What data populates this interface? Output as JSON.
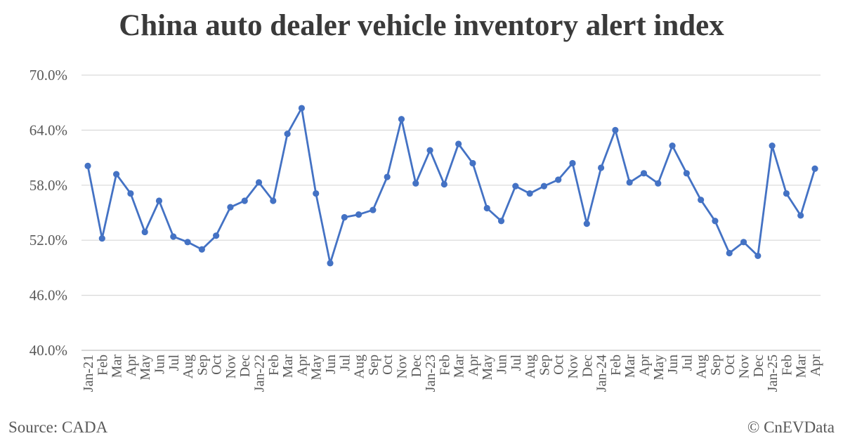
{
  "chart_data": {
    "type": "line",
    "title": "China auto dealer vehicle inventory alert index",
    "xlabel": "",
    "ylabel": "",
    "ylim": [
      40,
      70
    ],
    "y_ticks": [
      "40.0%",
      "46.0%",
      "52.0%",
      "58.0%",
      "64.0%",
      "70.0%"
    ],
    "grid": true,
    "legend": "none",
    "categories": [
      "Jan-21",
      "Feb",
      "Mar",
      "Apr",
      "May",
      "Jun",
      "Jul",
      "Aug",
      "Sep",
      "Oct",
      "Nov",
      "Dec",
      "Jan-22",
      "Feb",
      "Mar",
      "Apr",
      "May",
      "Jun",
      "Jul",
      "Aug",
      "Sep",
      "Oct",
      "Nov",
      "Dec",
      "Jan-23",
      "Feb",
      "Mar",
      "Apr",
      "May",
      "Jun",
      "Jul",
      "Aug",
      "Sep",
      "Oct",
      "Nov",
      "Dec",
      "Jan-24",
      "Feb",
      "Mar",
      "Apr",
      "May",
      "Jun",
      "Jul",
      "Aug",
      "Sep",
      "Oct",
      "Nov",
      "Dec",
      "Jan-25",
      "Feb",
      "Mar",
      "Apr"
    ],
    "series": [
      {
        "color": "#4472C4",
        "values": [
          60.1,
          52.2,
          59.2,
          57.1,
          52.9,
          56.3,
          52.4,
          51.8,
          51.0,
          52.5,
          55.6,
          56.3,
          58.3,
          56.3,
          63.6,
          66.4,
          57.1,
          49.5,
          54.5,
          54.8,
          55.3,
          58.9,
          65.2,
          58.2,
          61.8,
          58.1,
          62.5,
          60.4,
          55.5,
          54.1,
          57.9,
          57.1,
          57.9,
          58.6,
          60.4,
          53.8,
          59.9,
          64.0,
          58.3,
          59.3,
          58.2,
          62.3,
          59.3,
          56.4,
          54.1,
          50.6,
          51.8,
          50.3,
          62.3,
          57.1,
          54.7,
          59.8
        ]
      }
    ]
  },
  "footer": {
    "source": "Source: CADA",
    "credit": "© CnEVData"
  }
}
